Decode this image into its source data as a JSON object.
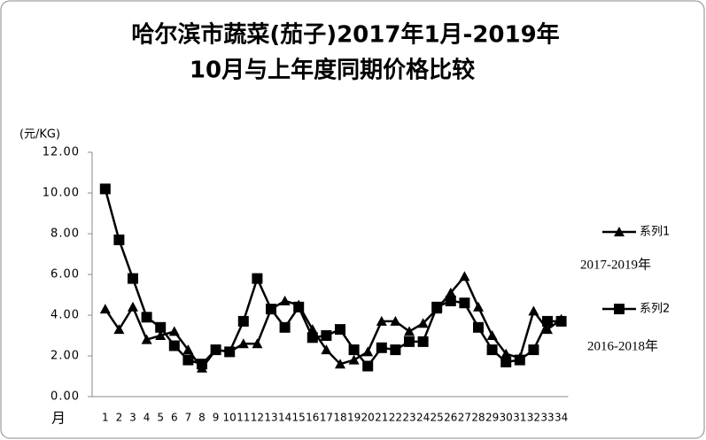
{
  "chart_data": {
    "type": "line",
    "title": [
      "哈尔滨市蔬菜(茄子)2017年1月-2019年",
      "10月与上年度同期价格比较"
    ],
    "y_label": "(元/KG)",
    "x_label": "月",
    "annotations": [
      "2017-2019年",
      "2016-2018年"
    ],
    "categories": [
      "1",
      "2",
      "3",
      "4",
      "5",
      "6",
      "7",
      "8",
      "9",
      "10",
      "11",
      "12",
      "13",
      "14",
      "15",
      "16",
      "17",
      "18",
      "19",
      "20",
      "21",
      "22",
      "23",
      "24",
      "25",
      "26",
      "27",
      "28",
      "29",
      "30",
      "31",
      "32",
      "33",
      "34"
    ],
    "series": [
      {
        "name": "系列1",
        "color": "#000000",
        "marker": "triangle",
        "values": [
          4.3,
          3.3,
          4.4,
          2.8,
          3.0,
          3.2,
          2.3,
          1.4,
          2.3,
          2.2,
          2.6,
          2.6,
          4.3,
          4.7,
          4.5,
          3.3,
          2.3,
          1.6,
          1.8,
          2.2,
          3.7,
          3.7,
          3.2,
          3.6,
          4.3,
          5.1,
          5.9,
          4.4,
          3.0,
          2.1,
          1.9,
          4.2,
          3.3,
          3.8
        ]
      },
      {
        "name": "系列2",
        "color": "#000000",
        "marker": "square",
        "values": [
          10.2,
          7.7,
          5.8,
          3.9,
          3.4,
          2.5,
          1.8,
          1.6,
          2.3,
          2.2,
          3.7,
          5.8,
          4.3,
          3.4,
          4.4,
          2.9,
          3.0,
          3.3,
          2.3,
          1.5,
          2.4,
          2.3,
          2.7,
          2.7,
          4.4,
          4.7,
          4.6,
          3.4,
          2.3,
          1.7,
          1.8,
          2.3,
          3.7,
          3.7
        ]
      }
    ],
    "ylim": [
      0,
      12
    ],
    "yticks": [
      {
        "value": 0,
        "label": "0.00"
      },
      {
        "value": 2,
        "label": "2.00"
      },
      {
        "value": 4,
        "label": "4.00"
      },
      {
        "value": 6,
        "label": "6.00"
      },
      {
        "value": 8,
        "label": "8.00"
      },
      {
        "value": 10,
        "label": "10.00"
      },
      {
        "value": 12,
        "label": "12.00"
      }
    ],
    "grid": false
  }
}
